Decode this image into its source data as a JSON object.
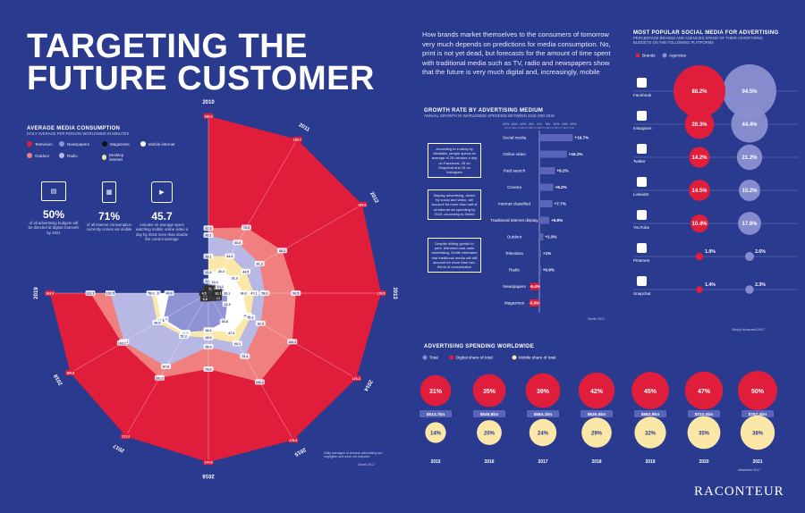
{
  "header": {
    "title_line1": "TARGETING THE",
    "title_line2": "FUTURE CUSTOMER",
    "intro": "How brands market themselves to the consumers of tomorrow very much depends on predictions for media consumption. No, print is not yet dead, but forecasts for the amount of time spent with traditional media such as TV, radio and newspapers show that the future is very much digital and, increasingly, mobile"
  },
  "consumption": {
    "title": "AVERAGE MEDIA CONSUMPTION",
    "subtitle": "DAILY AVERAGE PER PERSON WORLDWIDE IN MINUTES",
    "legend": [
      "Television",
      "Newspapers",
      "Magazines",
      "Mobile internet",
      "Outdoor",
      "Radio",
      "Desktop internet"
    ],
    "stats": [
      {
        "icon": "browser-icon",
        "value": "50%",
        "text": "of all advertising budgets will be directed at digital channels by 2021"
      },
      {
        "icon": "tablet-icon",
        "value": "71%",
        "text": "of all internet consumption currently comes via mobile"
      },
      {
        "icon": "video-icon",
        "value": "45.7",
        "text": "minutes on average spent watching mobile online video a day by 2019 more than double the current average"
      }
    ],
    "footnote": "Daily averages of viewers advertising are negligible and were not included",
    "source": "Zenith 2017"
  },
  "chart_data": [
    {
      "type": "radial-stacked",
      "title": "AVERAGE MEDIA CONSUMPTION",
      "categories": [
        "2010",
        "2011",
        "2012",
        "2013",
        "2014",
        "2015",
        "2016",
        "2017",
        "2018",
        "2019"
      ],
      "series": [
        {
          "name": "Magazines",
          "values": [
            5.3,
            5.5,
            10.1,
            10.1,
            10.1,
            6.3,
            4.7,
            6.8,
            3.8,
            4.5
          ]
        },
        {
          "name": "Newspapers",
          "values": [
            12.5,
            13.4,
            14.2,
            19.1,
            22.5,
            33.8,
            38.5,
            47.0,
            53.5,
            40.6
          ]
        },
        {
          "name": "Mobile internet",
          "values": [
            21.6,
            26.4,
            31.3,
            36.3,
            46.3,
            47.3,
            38.2,
            48.7,
            56.5,
            54.3
          ]
        },
        {
          "name": "Desktop internet",
          "values": [
            38.1,
            44.3,
            44.5,
            47.1,
            50.2,
            60.1,
            45.9,
            51.3,
            60.9,
            59.1
          ]
        },
        {
          "name": "Radio",
          "values": [
            60.1,
            60.6,
            61.2,
            58.3,
            62.3,
            75.4,
            55.4,
            87.6,
            100.6,
            101.5
          ]
        },
        {
          "name": "Outdoor",
          "values": [
            67.3,
            78.5,
            88.2,
            90.5,
            100.2,
            106.2,
            78.6,
            101.1,
            103.2,
            122.1
          ]
        },
        {
          "name": "Television",
          "values": [
            183.3,
            183.7,
            183.6,
            178.5,
            176.4,
            175.4,
            174.9,
            171.0,
            164.8,
            163.9
          ]
        }
      ]
    },
    {
      "type": "bar",
      "title": "GROWTH RATE BY ADVERTISING MEDIUM",
      "subtitle": "ANNUAL GROWTH IN WORLDWIDE SPENDING BETWEEN 2016 AND 2019",
      "categories": [
        "Social media",
        "Online video",
        "Paid search",
        "Cinema",
        "Internet classified",
        "Traditional internet display",
        "Outdoor",
        "Television",
        "Radio",
        "Newspapers",
        "Magazines"
      ],
      "values": [
        19.7,
        16.2,
        9.2,
        8.2,
        7.7,
        5.8,
        2.3,
        1.0,
        0.9,
        -5.4,
        -5.8
      ],
      "labels": [
        "+19.7%",
        "+16.2%",
        "+9.2%",
        "+8.2%",
        "+7.7%",
        "+5.8%",
        "+2.3%",
        "+1%",
        "+0.9%",
        "-5.4%",
        "-5.8%"
      ],
      "axis_ticks": [
        "-20%",
        "-15%",
        "-10%",
        "-5%",
        "0%",
        "5%",
        "10%",
        "15%",
        "20%"
      ],
      "xlim": [
        -20,
        20
      ],
      "notes": [
        "According to a study by Mediakix, people spend an average of 25 minutes a day on Facebook, 25 on Snapchat and 15 on Instagram",
        "Display advertising, driven by social and video, will account for more than half of all internet ad spending by 2019, according to Zenith",
        "Despite sliding growth in print, television and radio advertising, Zenith estimates that traditional media will still account for more than two-thirds of consumption"
      ],
      "source": "Zenith 2017"
    },
    {
      "type": "bubble",
      "title": "MOST POPULAR SOCIAL MEDIA FOR ADVERTISING",
      "subtitle": "PERCENTAGE BRANDS AND AGENCIES SPEND OF THEIR ADVERTISING BUDGETS ON THE FOLLOWING PLATFORMS",
      "series_names": [
        "Brands",
        "Agencies"
      ],
      "categories": [
        "Facebook",
        "Instagram",
        "Twitter",
        "LinkedIn",
        "YouTube",
        "Pinterest",
        "Snapchat"
      ],
      "brands": [
        88.2,
        28.3,
        14.2,
        14.5,
        10.4,
        1.9,
        1.4
      ],
      "agencies": [
        94.5,
        44.4,
        21.2,
        15.2,
        17.6,
        2.6,
        2.3
      ],
      "icons": [
        "facebook-icon",
        "instagram-icon",
        "twitter-icon",
        "linkedin-icon",
        "youtube-icon",
        "pinterest-icon",
        "snapchat-icon"
      ],
      "source": "Simply Measured 2017"
    },
    {
      "type": "bubble",
      "title": "ADVERTISING SPENDING WORLDWIDE",
      "legend": [
        "Total",
        "Digital share of total",
        "Mobile share of total"
      ],
      "categories": [
        "2015",
        "2016",
        "2017",
        "2018",
        "2019",
        "2020",
        "2021"
      ],
      "total": [
        "$513.7bn",
        "$545.8bn",
        "$584.1bn",
        "$630.6bn",
        "$682.9bn",
        "$722.4bn",
        "$757.4bn"
      ],
      "digital_share": [
        31,
        35,
        39,
        42,
        45,
        47,
        50
      ],
      "mobile_share": [
        14,
        20,
        24,
        29,
        32,
        35,
        38
      ],
      "source": "eMarketer 2017"
    }
  ],
  "colors": {
    "background": "#2a3a8e",
    "television": "#e11d3c",
    "outdoor": "#f08080",
    "newspapers": "#8e93d6",
    "radio": "#b8b8e4",
    "magazines": "#111111",
    "mobile_internet": "#ffffff",
    "desktop_internet": "#fbe8a8"
  },
  "brand": "RACONTEUR"
}
